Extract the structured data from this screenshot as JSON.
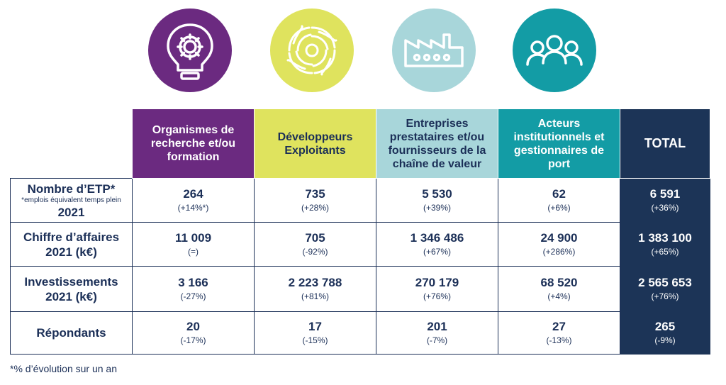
{
  "icons": [
    {
      "name": "lightbulb-gear-icon",
      "color": "#6b2a80"
    },
    {
      "name": "swirl-icon",
      "color": "#dfe35e"
    },
    {
      "name": "factory-icon",
      "color": "#a8d6da"
    },
    {
      "name": "people-group-icon",
      "color": "#139ca5"
    }
  ],
  "columns": [
    "Organismes de recherche et/ou formation",
    "Développeurs Exploitants",
    "Entreprises prestataires et/ou fournisseurs de la chaîne de valeur",
    "Acteurs institutionnels et gestionnaires de port",
    "TOTAL"
  ],
  "rows": [
    {
      "label": "Nombre d’ETP*",
      "sublabel": "*emplois équivalent temps plein",
      "label2": "2021",
      "cells": [
        {
          "value": "264",
          "change": "(+14%*)"
        },
        {
          "value": "735",
          "change": "(+28%)"
        },
        {
          "value": "5 530",
          "change": "(+39%)"
        },
        {
          "value": "62",
          "change": "(+6%)"
        },
        {
          "value": "6 591",
          "change": "(+36%)"
        }
      ]
    },
    {
      "label": "Chiffre d’affaires",
      "label2": "2021 (k€)",
      "cells": [
        {
          "value": "11 009",
          "change": "(=)"
        },
        {
          "value": "705",
          "change": "(-92%)"
        },
        {
          "value": "1 346 486",
          "change": "(+67%)"
        },
        {
          "value": "24 900",
          "change": "(+286%)"
        },
        {
          "value": "1 383 100",
          "change": "(+65%)"
        }
      ]
    },
    {
      "label": "Investissements",
      "label2": "2021 (k€)",
      "cells": [
        {
          "value": "3 166",
          "change": "(-27%)"
        },
        {
          "value": "2 223 788",
          "change": "(+81%)"
        },
        {
          "value": "270 179",
          "change": "(+76%)"
        },
        {
          "value": "68 520",
          "change": "(+4%)"
        },
        {
          "value": "2 565 653",
          "change": "(+76%)"
        }
      ]
    },
    {
      "label": "Répondants",
      "label2": "",
      "cells": [
        {
          "value": "20",
          "change": "(-17%)"
        },
        {
          "value": "17",
          "change": "(-15%)"
        },
        {
          "value": "201",
          "change": "(-7%)"
        },
        {
          "value": "27",
          "change": "(-13%)"
        },
        {
          "value": "265",
          "change": "(-9%)"
        }
      ]
    }
  ],
  "footnote": "*% d’évolution sur un an"
}
